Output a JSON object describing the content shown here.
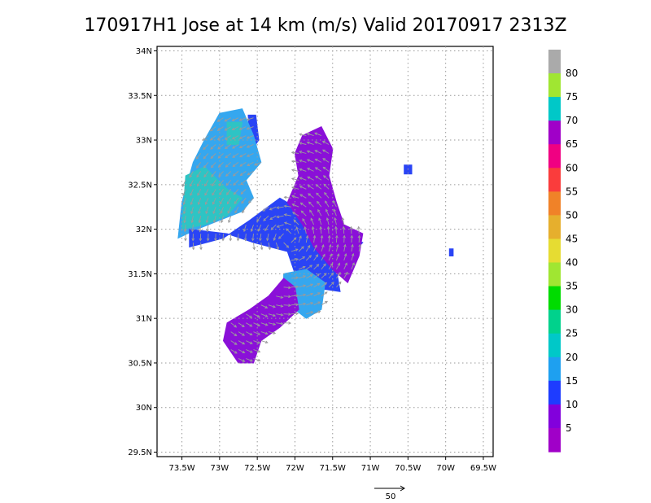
{
  "chart_data": {
    "type": "heatmap",
    "title": "170917H1 Jose at 14 km (m/s) Valid 20170917 2313Z",
    "x_ticks": [
      "73.5W",
      "73W",
      "72.5W",
      "72W",
      "71.5W",
      "71W",
      "70.5W",
      "70W",
      "69.5W"
    ],
    "y_ticks": [
      "34N",
      "33.5N",
      "33N",
      "32.5N",
      "32N",
      "31.5N",
      "31N",
      "30.5N",
      "30N",
      "29.5N"
    ],
    "xlim": [
      -73.83,
      -69.37
    ],
    "ylim": [
      29.45,
      34.05
    ],
    "grid": true,
    "legend": {
      "placement": "right",
      "labels": [
        "80",
        "75",
        "70",
        "65",
        "60",
        "55",
        "50",
        "45",
        "40",
        "35",
        "30",
        "25",
        "20",
        "15",
        "10",
        "5"
      ],
      "colors": [
        "#aaaaaa",
        "#a0e632",
        "#00c8c8",
        "#a000c8",
        "#f00082",
        "#fa3c3c",
        "#f08228",
        "#e6af2d",
        "#e6dc32",
        "#a0e632",
        "#00dc00",
        "#00d28c",
        "#00c8c8",
        "#1ea0f0",
        "#1e3cff",
        "#8200dc",
        "#a000c8"
      ]
    },
    "reference_vector_label": "50",
    "colors": {
      "vector": "#9b9b9b",
      "grid": "#9a9a9a",
      "teal": "#2ec4c4",
      "light_blue": "#35a7ef",
      "blue": "#2a44f5",
      "purple": "#8a10d8",
      "magenta": "#a30bc8"
    },
    "regions": [
      {
        "level": "10-15",
        "color": "blue",
        "points": [
          [
            -72.62,
            33.28
          ],
          [
            -72.52,
            33.28
          ],
          [
            -72.48,
            33.0
          ],
          [
            -72.6,
            32.85
          ]
        ]
      },
      {
        "level": "15-20",
        "color": "light_blue",
        "points": [
          [
            -73.0,
            33.3
          ],
          [
            -72.7,
            33.35
          ],
          [
            -72.55,
            33.05
          ],
          [
            -72.45,
            32.75
          ],
          [
            -72.65,
            32.55
          ],
          [
            -72.55,
            32.35
          ],
          [
            -72.7,
            32.2
          ],
          [
            -73.0,
            32.1
          ],
          [
            -73.3,
            32.0
          ],
          [
            -73.55,
            31.9
          ],
          [
            -73.5,
            32.3
          ],
          [
            -73.35,
            32.75
          ],
          [
            -73.2,
            33.0
          ]
        ]
      },
      {
        "level": "20-25",
        "color": "teal",
        "points": [
          [
            -73.5,
            32.0
          ],
          [
            -73.45,
            32.6
          ],
          [
            -73.2,
            32.7
          ],
          [
            -72.9,
            32.45
          ],
          [
            -72.7,
            32.35
          ],
          [
            -72.9,
            32.15
          ],
          [
            -73.2,
            32.05
          ]
        ]
      },
      {
        "level": "20-25",
        "color": "teal",
        "points": [
          [
            -72.9,
            33.2
          ],
          [
            -72.7,
            33.2
          ],
          [
            -72.75,
            32.95
          ],
          [
            -72.9,
            32.95
          ]
        ]
      },
      {
        "level": "10-15",
        "color": "blue",
        "points": [
          [
            -73.4,
            32.0
          ],
          [
            -72.9,
            31.95
          ],
          [
            -72.55,
            31.85
          ],
          [
            -72.1,
            31.75
          ],
          [
            -72.0,
            31.5
          ],
          [
            -71.8,
            31.35
          ],
          [
            -71.4,
            31.3
          ],
          [
            -71.45,
            31.55
          ],
          [
            -71.1,
            31.85
          ],
          [
            -71.35,
            31.95
          ],
          [
            -71.6,
            32.0
          ],
          [
            -72.0,
            32.25
          ],
          [
            -72.2,
            32.35
          ],
          [
            -72.6,
            32.1
          ],
          [
            -72.95,
            31.9
          ],
          [
            -73.4,
            31.8
          ]
        ]
      },
      {
        "level": "5-10",
        "color": "purple",
        "points": [
          [
            -71.9,
            33.05
          ],
          [
            -71.65,
            33.15
          ],
          [
            -71.5,
            32.9
          ],
          [
            -71.55,
            32.6
          ],
          [
            -71.45,
            32.3
          ],
          [
            -71.35,
            32.05
          ],
          [
            -71.1,
            31.95
          ],
          [
            -71.15,
            31.7
          ],
          [
            -71.3,
            31.4
          ],
          [
            -71.5,
            31.55
          ],
          [
            -71.75,
            31.8
          ],
          [
            -71.9,
            32.05
          ],
          [
            -72.1,
            32.3
          ],
          [
            -71.95,
            32.6
          ],
          [
            -72.0,
            32.85
          ]
        ]
      },
      {
        "level": "15-20",
        "color": "light_blue",
        "points": [
          [
            -72.15,
            31.5
          ],
          [
            -71.85,
            31.55
          ],
          [
            -71.6,
            31.4
          ],
          [
            -71.65,
            31.1
          ],
          [
            -71.85,
            31.0
          ],
          [
            -72.15,
            31.2
          ]
        ]
      },
      {
        "level": "5-10",
        "color": "purple",
        "points": [
          [
            -72.15,
            31.45
          ],
          [
            -72.0,
            31.35
          ],
          [
            -71.95,
            31.1
          ],
          [
            -72.2,
            30.9
          ],
          [
            -72.45,
            30.75
          ],
          [
            -72.55,
            30.5
          ],
          [
            -72.75,
            30.5
          ],
          [
            -72.95,
            30.75
          ],
          [
            -72.9,
            30.95
          ],
          [
            -72.6,
            31.1
          ],
          [
            -72.35,
            31.25
          ]
        ]
      },
      {
        "level": "10-15",
        "color": "blue",
        "points": [
          [
            -70.55,
            32.72
          ],
          [
            -70.45,
            32.72
          ],
          [
            -70.45,
            32.62
          ],
          [
            -70.55,
            32.62
          ]
        ]
      },
      {
        "level": "10-15",
        "color": "blue",
        "points": [
          [
            -69.95,
            31.78
          ],
          [
            -69.9,
            31.78
          ],
          [
            -69.9,
            31.7
          ],
          [
            -69.95,
            31.7
          ]
        ]
      }
    ]
  }
}
